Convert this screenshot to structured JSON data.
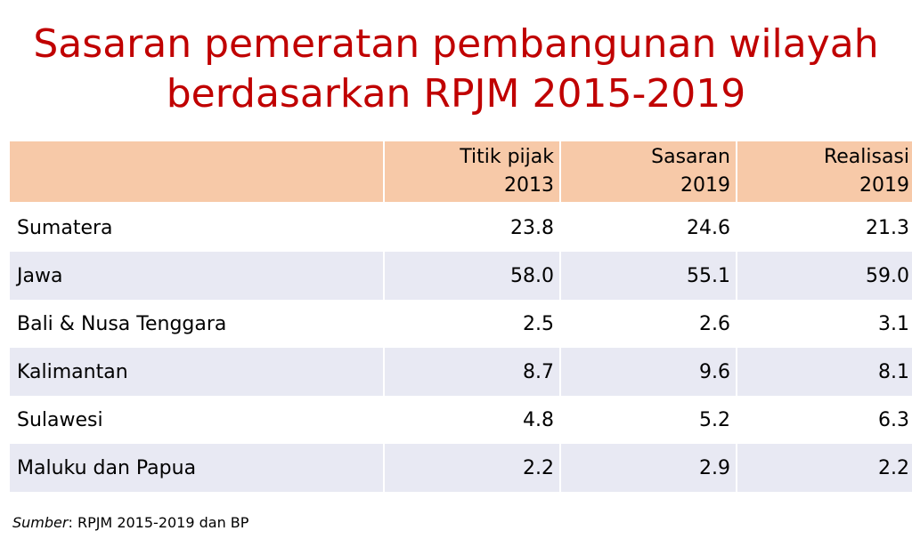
{
  "title": {
    "line1": "Sasaran pemeratan pembangunan wilayah",
    "line2": "berdasarkan RPJM 2015-2019"
  },
  "table": {
    "headers": [
      {
        "line1": "",
        "line2": ""
      },
      {
        "line1": "Titik pijak",
        "line2": "2013"
      },
      {
        "line1": "Sasaran",
        "line2": "2019"
      },
      {
        "line1": "Realisasi",
        "line2": "2019"
      }
    ],
    "rows": [
      {
        "region": "Sumatera",
        "baseline_2013": "23.8",
        "target_2019": "24.6",
        "actual_2019": "21.3"
      },
      {
        "region": "Jawa",
        "baseline_2013": "58.0",
        "target_2019": "55.1",
        "actual_2019": "59.0"
      },
      {
        "region": "Bali & Nusa Tenggara",
        "baseline_2013": "2.5",
        "target_2019": "2.6",
        "actual_2019": "3.1"
      },
      {
        "region": "Kalimantan",
        "baseline_2013": "8.7",
        "target_2019": "9.6",
        "actual_2019": "8.1"
      },
      {
        "region": "Sulawesi",
        "baseline_2013": "4.8",
        "target_2019": "5.2",
        "actual_2019": "6.3"
      },
      {
        "region": "Maluku dan Papua",
        "baseline_2013": "2.2",
        "target_2019": "2.9",
        "actual_2019": "2.2"
      }
    ]
  },
  "source": {
    "label": "Sumber",
    "text": ": RPJM 2015-2019 dan BP"
  },
  "colors": {
    "title": "#c00000",
    "header_bg": "#f7c9a8",
    "stripe_bg": "#e8e9f3"
  }
}
